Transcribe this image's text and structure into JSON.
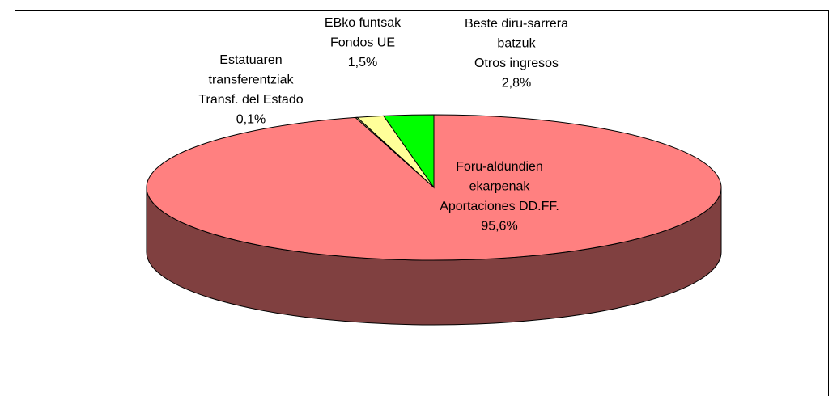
{
  "chart_data": {
    "type": "pie",
    "categories": [
      [
        "Foru-aldundien",
        "ekarpenak",
        "Aportaciones DD.FF."
      ],
      [
        "Estatuaren",
        "transferentziak",
        "Transf. del Estado"
      ],
      [
        "EBko funtsak",
        "Fondos UE"
      ],
      [
        "Beste diru-sarrera",
        "batzuk",
        "Otros ingresos"
      ]
    ],
    "values": [
      95.6,
      0.1,
      1.5,
      2.8
    ],
    "value_labels": [
      "95,6%",
      "0,1%",
      "1,5%",
      "2,8%"
    ],
    "colors": [
      "#ff8080",
      "#ffff99",
      "#ffff99",
      "#00ff00"
    ],
    "side_color": "#804040"
  }
}
